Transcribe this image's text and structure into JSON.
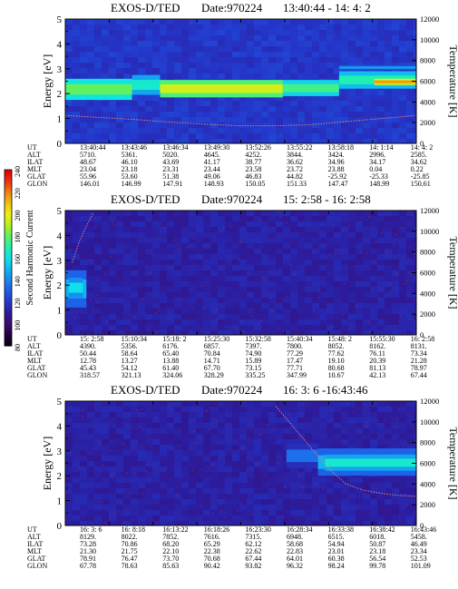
{
  "colorbar": {
    "title": "Second Harmonic Current",
    "ticks": [
      "80",
      "100",
      "120",
      "140",
      "160",
      "180",
      "200",
      "220",
      "240"
    ],
    "range": [
      80,
      240
    ],
    "colors": [
      "#000000",
      "#200040",
      "#3a0a6e",
      "#2e1a9a",
      "#2436c8",
      "#1e5ae6",
      "#1a86f0",
      "#10b4f0",
      "#10e0e8",
      "#20f0b0",
      "#60f060",
      "#b0f020",
      "#f0f010",
      "#f0c010",
      "#f0800c",
      "#f03010",
      "#e00000"
    ]
  },
  "field_labels": [
    "UT",
    "ALT",
    "ILAT",
    "MLT",
    "GLAT",
    "GLON"
  ],
  "panels": [
    {
      "title": "EXOS-D/TED",
      "date": "Date:970224",
      "time_range": "13:40:44 - 14: 4: 2",
      "ylabel_left": "Energy [eV]",
      "ylabel_right": "Temperature [K]",
      "yticks_left": [
        "0",
        "1",
        "2",
        "3",
        "4",
        "5"
      ],
      "yticks_right": [
        "0",
        "2000",
        "4000",
        "6000",
        "8000",
        "10000",
        "12000"
      ],
      "columns": [
        [
          "13:40:44",
          "5710.",
          "48.67",
          "23.04",
          "55.96",
          "146.01"
        ],
        [
          "13:43:46",
          "5361.",
          "46.10",
          "23.18",
          "53.60",
          "146.99"
        ],
        [
          "13:46:34",
          "5020.",
          "43.69",
          "23.31",
          "51.38",
          "147.91"
        ],
        [
          "13:49:30",
          "4645.",
          "41.17",
          "23.44",
          "49.06",
          "148.93"
        ],
        [
          "13:52:26",
          "4252.",
          "38.77",
          "23.58",
          "46.83",
          "150.05"
        ],
        [
          "13:55:22",
          "3844.",
          "36.62",
          "23.72",
          "44.82",
          "151.33"
        ],
        [
          "13:58:18",
          "3424.",
          "34.96",
          "23.88",
          "-25.92",
          "147.47"
        ],
        [
          "14: 1:14",
          "2996.",
          "34.17",
          "0.04",
          "-25.33",
          "148.99"
        ],
        [
          "14: 4: 2",
          "2585.",
          "34.62",
          "0.22",
          "-25.85",
          "150.61"
        ]
      ]
    },
    {
      "title": "EXOS-D/TED",
      "date": "Date:970224",
      "time_range": "15: 2:58 - 16: 2:58",
      "ylabel_left": "Energy [eV]",
      "ylabel_right": "Temperature [K]",
      "yticks_left": [
        "0",
        "1",
        "2",
        "3",
        "4",
        "5"
      ],
      "yticks_right": [
        "0",
        "2000",
        "4000",
        "6000",
        "8000",
        "10000",
        "12000"
      ],
      "columns": [
        [
          "15: 2:58",
          "4390.",
          "50.44",
          "12.78",
          "45.43",
          "318.57"
        ],
        [
          "15:10:34",
          "5356.",
          "58.64",
          "13.27",
          "54.12",
          "321.13"
        ],
        [
          "15:18: 2",
          "6176.",
          "65.40",
          "13.88",
          "61.40",
          "324.06"
        ],
        [
          "15:25:30",
          "6857.",
          "70.84",
          "14.71",
          "67.70",
          "328.29"
        ],
        [
          "15:32:58",
          "7397.",
          "74.90",
          "15.89",
          "73.15",
          "335.25"
        ],
        [
          "15:40:34",
          "7800.",
          "77.29",
          "17.47",
          "77.71",
          "347.99"
        ],
        [
          "15:48: 2",
          "8052.",
          "77.62",
          "19.10",
          "80.68",
          "10.67"
        ],
        [
          "15:55:30",
          "8162.",
          "76.11",
          "20.39",
          "81.13",
          "42.13"
        ],
        [
          "16: 2:58",
          "8131.",
          "73.34",
          "21.28",
          "78.97",
          "67.44"
        ]
      ]
    },
    {
      "title": "EXOS-D/TED",
      "date": "Date:970224",
      "time_range": "16: 3: 6 -16:43:46",
      "ylabel_left": "Energy [eV]",
      "ylabel_right": "Temperature [K]",
      "yticks_left": [
        "0",
        "1",
        "2",
        "3",
        "4",
        "5"
      ],
      "yticks_right": [
        "0",
        "2000",
        "4000",
        "6000",
        "8000",
        "10000",
        "12000"
      ],
      "columns": [
        [
          "16: 3: 6",
          "8129.",
          "73.28",
          "21.30",
          "78.91",
          "67.78"
        ],
        [
          "16: 8:18",
          "8022.",
          "70.86",
          "21.75",
          "76.47",
          "78.63"
        ],
        [
          "16:13:22",
          "7852.",
          "68.20",
          "22.10",
          "73.70",
          "85.63"
        ],
        [
          "16:18:26",
          "7616.",
          "65.29",
          "22.38",
          "70.68",
          "90.42"
        ],
        [
          "16:23:30",
          "7315.",
          "62.12",
          "22.62",
          "67.44",
          "93.82"
        ],
        [
          "16:28:34",
          "6948.",
          "58.68",
          "22.83",
          "64.01",
          "96.32"
        ],
        [
          "16:33:38",
          "6515.",
          "54.94",
          "23.01",
          "60.38",
          "98.24"
        ],
        [
          "16:38:42",
          "6018.",
          "50.87",
          "23.18",
          "56.54",
          "99.78"
        ],
        [
          "16:43:46",
          "5458.",
          "46.49",
          "23.34",
          "52.53",
          "101.09"
        ]
      ]
    }
  ],
  "chart_data": [
    {
      "type": "heatmap",
      "title": "EXOS-D/TED   Date:970224   13:40:44 - 14: 4: 2",
      "xlabel": "UT",
      "ylabel": "Energy [eV]",
      "ylabel_right": "Temperature [K]",
      "ylim": [
        0,
        5
      ],
      "ylim_right": [
        0,
        12000
      ],
      "x": [
        "13:40:44",
        "13:43:46",
        "13:46:34",
        "13:49:30",
        "13:52:26",
        "13:55:22",
        "13:58:18",
        "14: 1:14",
        "14: 4: 2"
      ],
      "background_level": 120,
      "bands": [
        {
          "x0": 0.0,
          "x1": 0.19,
          "ylo": 1.75,
          "yhi": 2.6,
          "level": 180
        },
        {
          "x0": 0.19,
          "x1": 0.27,
          "ylo": 1.95,
          "yhi": 2.75,
          "level": 165
        },
        {
          "x0": 0.27,
          "x1": 0.62,
          "ylo": 1.85,
          "yhi": 2.55,
          "level": 195
        },
        {
          "x0": 0.62,
          "x1": 0.78,
          "ylo": 1.9,
          "yhi": 2.55,
          "level": 175
        },
        {
          "x0": 0.78,
          "x1": 1.0,
          "ylo": 2.2,
          "yhi": 2.9,
          "level": 170
        },
        {
          "x0": 0.78,
          "x1": 1.0,
          "ylo": 2.95,
          "yhi": 3.15,
          "level": 145
        },
        {
          "x0": 0.88,
          "x1": 1.0,
          "ylo": 2.35,
          "yhi": 2.6,
          "level": 215
        }
      ],
      "temperature_curve": {
        "x": [
          0.0,
          0.1,
          0.2,
          0.3,
          0.4,
          0.5,
          0.6,
          0.7,
          0.8,
          0.9,
          1.0
        ],
        "y": [
          2700,
          2500,
          2300,
          2050,
          1850,
          1700,
          1700,
          1800,
          2100,
          2400,
          2700
        ]
      }
    },
    {
      "type": "heatmap",
      "title": "EXOS-D/TED   Date:970224   15: 2:58 - 16: 2:58",
      "xlabel": "UT",
      "ylabel": "Energy [eV]",
      "ylabel_right": "Temperature [K]",
      "ylim": [
        0,
        5
      ],
      "ylim_right": [
        0,
        12000
      ],
      "x": [
        "15: 2:58",
        "15:10:34",
        "15:18: 2",
        "15:25:30",
        "15:32:58",
        "15:40:34",
        "15:48: 2",
        "15:55:30",
        "16: 2:58"
      ],
      "background_level": 112,
      "bands": [
        {
          "x0": 0.0,
          "x1": 0.06,
          "ylo": 1.1,
          "yhi": 2.6,
          "level": 150
        },
        {
          "x0": 0.01,
          "x1": 0.05,
          "ylo": 1.5,
          "yhi": 2.3,
          "level": 160
        }
      ],
      "temperature_curve": {
        "x": [
          0.02,
          0.04,
          0.06,
          0.08
        ],
        "y": [
          7000,
          9000,
          10500,
          11800
        ]
      }
    },
    {
      "type": "heatmap",
      "title": "EXOS-D/TED   Date:970224   16: 3: 6 -16:43:46",
      "xlabel": "UT",
      "ylabel": "Energy [eV]",
      "ylabel_right": "Temperature [K]",
      "ylim": [
        0,
        5
      ],
      "ylim_right": [
        0,
        12000
      ],
      "x": [
        "16: 3: 6",
        "16: 8:18",
        "16:13:22",
        "16:18:26",
        "16:23:30",
        "16:28:34",
        "16:33:38",
        "16:38:42",
        "16:43:46"
      ],
      "background_level": 112,
      "bands": [
        {
          "x0": 0.63,
          "x1": 0.72,
          "ylo": 2.3,
          "yhi": 3.3,
          "level": 135
        },
        {
          "x0": 0.72,
          "x1": 1.0,
          "ylo": 2.0,
          "yhi": 3.1,
          "level": 150
        },
        {
          "x0": 0.74,
          "x1": 1.0,
          "ylo": 2.2,
          "yhi": 2.85,
          "level": 165
        }
      ],
      "temperature_curve": {
        "x": [
          0.6,
          0.65,
          0.7,
          0.75,
          0.8,
          0.85,
          0.9,
          0.95,
          1.0
        ],
        "y": [
          11500,
          9500,
          7500,
          5500,
          4000,
          3400,
          3100,
          2900,
          2800
        ]
      }
    }
  ]
}
